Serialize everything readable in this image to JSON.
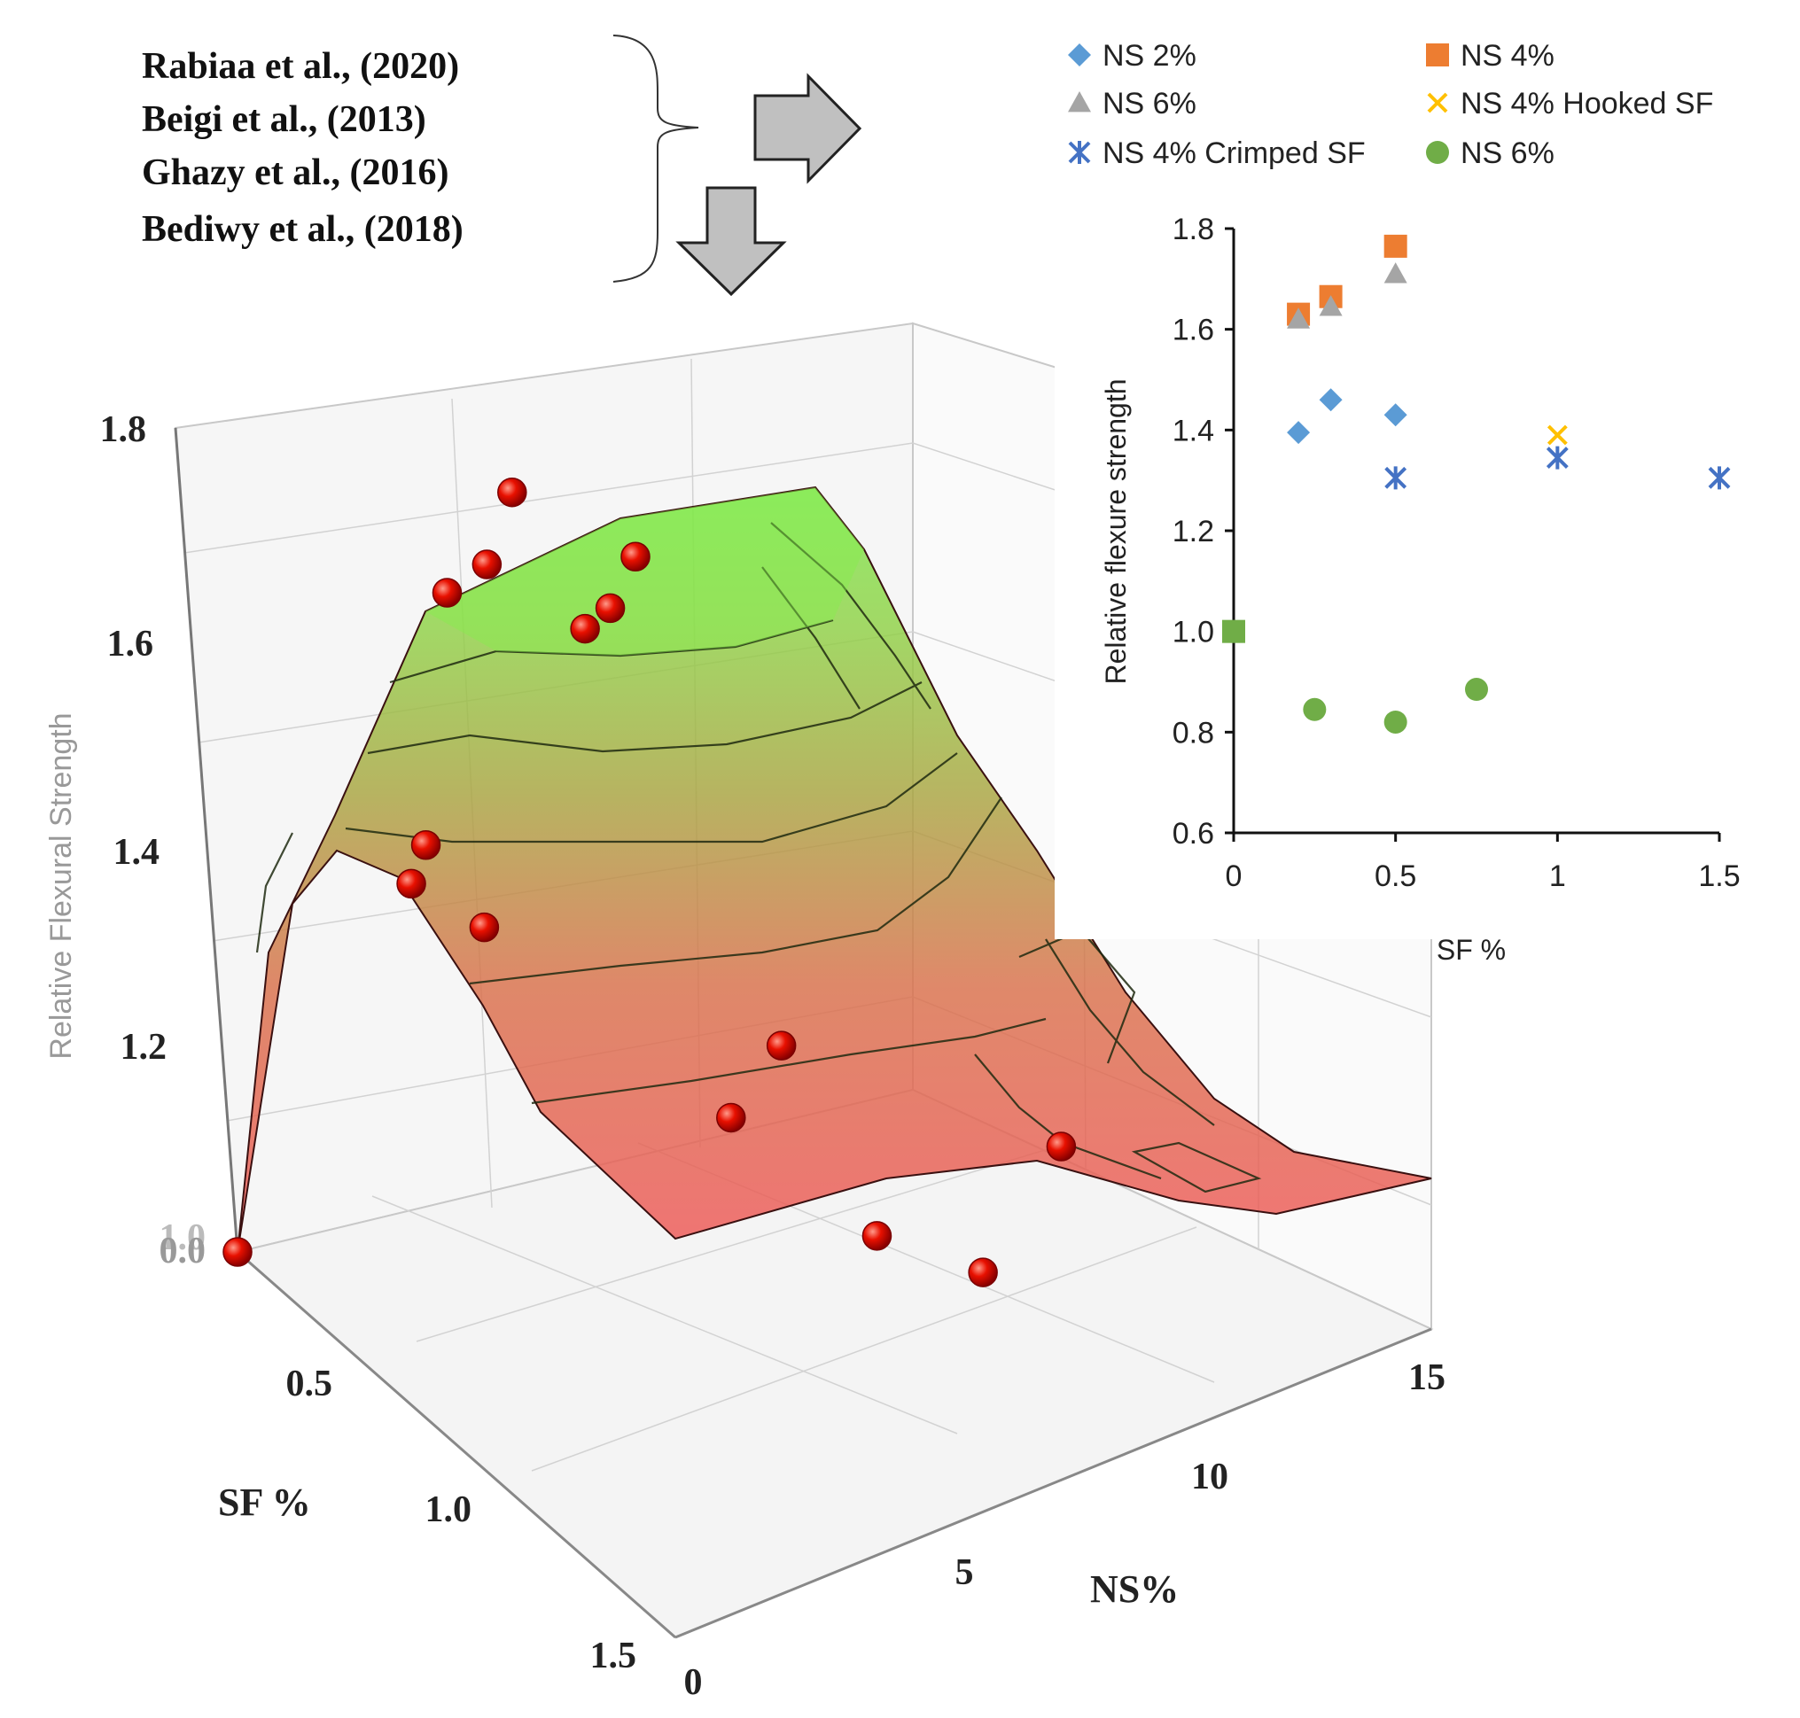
{
  "references": [
    "Rabiaa et al., (2020)",
    "Beigi et al., (2013)",
    "Ghazy et al., (2016)",
    "Bediwy et al., (2018)"
  ],
  "colors": {
    "arrow_fill": "#c0c0c0",
    "ns2": "#5b9bd5",
    "ns4": "#ed7d31",
    "ns6_gray": "#a5a5a5",
    "ns4_hooked": "#ffc000",
    "ns4_crimped": "#4472c4",
    "ns6_green": "#70ad47",
    "surface_low": "#ee5a5a",
    "surface_high": "#7fe04a",
    "point": "#e60000"
  },
  "chart_data": [
    {
      "type": "surface3d",
      "ylabel": "Relative Flexural Strength",
      "x_label": "NS%",
      "z_label": "SF %",
      "y_ticks": [
        "1.0",
        "1.2",
        "1.4",
        "1.6",
        "1.8"
      ],
      "y_floor_overlap_labels": [
        "1.0",
        "0.0"
      ],
      "x_ticks": [
        "0",
        "5",
        "10",
        "15"
      ],
      "z_ticks": [
        "0.5",
        "1.0",
        "1.5"
      ],
      "ylim": [
        1.0,
        1.8
      ],
      "xlim": [
        0,
        15
      ],
      "zlim": [
        0,
        1.5
      ],
      "points": [
        {
          "ns": 0,
          "sf": 0,
          "v": 1.0
        },
        {
          "ns": 2,
          "sf": 0.25,
          "v": 1.38
        },
        {
          "ns": 2,
          "sf": 0.3,
          "v": 1.43
        },
        {
          "ns": 2,
          "sf": 0.5,
          "v": 1.4
        },
        {
          "ns": 3,
          "sf": 0.2,
          "v": 1.63
        },
        {
          "ns": 3.5,
          "sf": 0.25,
          "v": 1.66
        },
        {
          "ns": 4,
          "sf": 0.25,
          "v": 1.72
        },
        {
          "ns": 4,
          "sf": 0.5,
          "v": 1.65
        },
        {
          "ns": 4.5,
          "sf": 0.5,
          "v": 1.66
        },
        {
          "ns": 5,
          "sf": 0.5,
          "v": 1.7
        },
        {
          "ns": 4,
          "sf": 1.0,
          "v": 1.3
        },
        {
          "ns": 4,
          "sf": 1.5,
          "v": 1.31
        },
        {
          "ns": 5,
          "sf": 1.0,
          "v": 1.35
        },
        {
          "ns": 9,
          "sf": 1.0,
          "v": 1.05
        },
        {
          "ns": 12,
          "sf": 0.75,
          "v": 1.05
        }
      ]
    },
    {
      "type": "scatter",
      "xlabel": "SF %",
      "ylabel": "Relative flexure strength",
      "xlim": [
        0,
        1.5
      ],
      "ylim": [
        0.6,
        1.8
      ],
      "x_ticks": [
        "0",
        "0.5",
        "1",
        "1.5"
      ],
      "y_ticks": [
        "0.6",
        "0.8",
        "1.0",
        "1.2",
        "1.4",
        "1.6",
        "1.8"
      ],
      "series": [
        {
          "name": "NS 2%",
          "marker": "diamond",
          "x": [
            0.2,
            0.3,
            0.5
          ],
          "y": [
            1.395,
            1.46,
            1.43
          ]
        },
        {
          "name": "NS 4%",
          "marker": "square",
          "x": [
            0.2,
            0.3,
            0.5
          ],
          "y": [
            1.63,
            1.665,
            1.765
          ]
        },
        {
          "name": "NS 6%",
          "marker": "triangle",
          "x": [
            0.2,
            0.3,
            0.5
          ],
          "y": [
            1.62,
            1.645,
            1.71
          ]
        },
        {
          "name": "NS 4%  Hooked SF",
          "marker": "x",
          "x": [
            1.0
          ],
          "y": [
            1.39
          ]
        },
        {
          "name": "NS 4% Crimped SF",
          "marker": "star",
          "x": [
            0.5,
            1.0,
            1.5
          ],
          "y": [
            1.305,
            1.345,
            1.305
          ]
        },
        {
          "name": "NS 6%",
          "marker": "circle",
          "x": [
            0.25,
            0.5,
            0.75
          ],
          "y": [
            0.845,
            0.82,
            0.885
          ]
        }
      ],
      "extra_points": [
        {
          "marker": "square",
          "x": 0,
          "y": 1.0
        }
      ]
    }
  ]
}
